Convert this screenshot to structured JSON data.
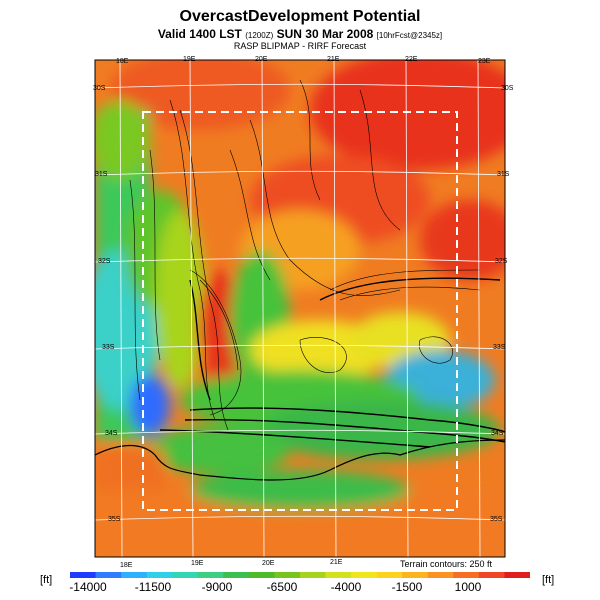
{
  "title": "OvercastDevelopment Potential",
  "subtitle": {
    "main": "Valid 1400 LST",
    "code": "(1200Z)",
    "date": "SUN 30 Mar 2008",
    "run": "[10hrFcst@2345z]"
  },
  "source": "RASP BLIPMAP - RIRF Forecast",
  "map": {
    "top_ticks": [
      "18E",
      "19E",
      "20E",
      "21E",
      "22E",
      "23E"
    ],
    "bottom_ticks": [
      "18E",
      "19E",
      "20E",
      "21E"
    ],
    "left_ticks": [
      "30S",
      "31S",
      "32S",
      "33S",
      "34S",
      "35S"
    ],
    "right_ticks": [
      "30S",
      "31S",
      "32S",
      "33S",
      "34S",
      "35S"
    ],
    "terrain_contours": "Terrain contours: 250 ft"
  },
  "colorbar": {
    "unit": "[ft]",
    "labels": [
      "-14000",
      "-11500",
      "-9000",
      "-6500",
      "-4000",
      "-1500",
      "1000"
    ],
    "colors": [
      "#1e3cff",
      "#2f7cff",
      "#2fb0ff",
      "#2fd0e8",
      "#32d6b4",
      "#3ccf82",
      "#3dbf50",
      "#4fba28",
      "#78c41e",
      "#a6d41e",
      "#d2e01e",
      "#f0e61e",
      "#fcd21e",
      "#fcb41e",
      "#fa9122",
      "#f66e26",
      "#f04628",
      "#e01e1e"
    ]
  }
}
